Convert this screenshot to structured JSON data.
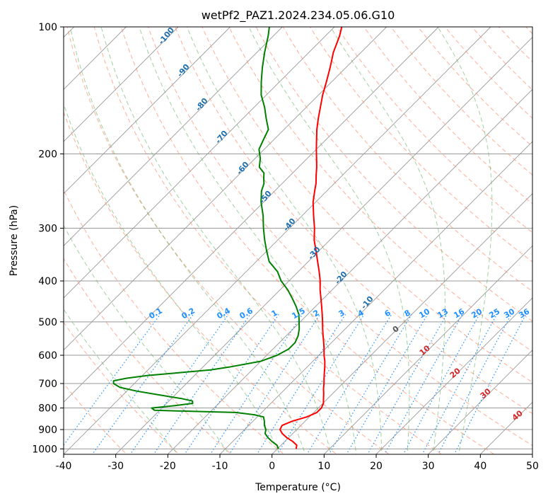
{
  "chart_data": {
    "type": "line",
    "title": "wetPf2_PAZ1.2024.234.05.06.G10",
    "xlabel": "Temperature (°C)",
    "ylabel": "Pressure (hPa)",
    "xlim": [
      -40,
      50
    ],
    "ylim": [
      1030,
      100
    ],
    "y_scale": "log",
    "x_ticks": [
      -40,
      -30,
      -20,
      -10,
      0,
      10,
      20,
      30,
      40,
      50
    ],
    "y_ticks": [
      100,
      200,
      300,
      400,
      500,
      600,
      700,
      800,
      900,
      1000
    ],
    "skew_degrees": 45,
    "grid": true,
    "series": [
      {
        "color": "#ff0000",
        "p": [
          1000,
          980,
          960,
          940,
          920,
          900,
          880,
          860,
          840,
          820,
          800,
          780,
          760,
          740,
          720,
          700,
          680,
          660,
          640,
          620,
          600,
          580,
          560,
          540,
          520,
          500,
          480,
          460,
          440,
          420,
          400,
          380,
          360,
          340,
          320,
          300,
          280,
          260,
          245,
          235,
          225,
          215,
          205,
          195,
          185,
          175,
          165,
          155,
          145,
          135,
          125,
          115,
          105,
          100
        ],
        "t": [
          3.6,
          3.0,
          1.5,
          -0.4,
          -2.0,
          -3.2,
          -3.6,
          -2.5,
          -0.5,
          0.6,
          0.6,
          0.1,
          -0.8,
          -1.7,
          -2.7,
          -3.6,
          -4.6,
          -5.6,
          -6.6,
          -7.7,
          -9.0,
          -10.2,
          -11.5,
          -12.9,
          -14.3,
          -15.7,
          -17.2,
          -18.8,
          -20.5,
          -22.3,
          -24.0,
          -26.0,
          -28.2,
          -30.5,
          -33.0,
          -35.2,
          -37.8,
          -40.5,
          -42.3,
          -43.5,
          -45.0,
          -46.5,
          -48.2,
          -50.0,
          -51.8,
          -53.7,
          -55.5,
          -57.3,
          -59.2,
          -61.0,
          -63.0,
          -65.3,
          -67.3,
          -68.6
        ]
      },
      {
        "color": "#008000",
        "p": [
          1000,
          980,
          960,
          940,
          920,
          900,
          880,
          860,
          840,
          830,
          820,
          815,
          810,
          805,
          800,
          790,
          780,
          770,
          760,
          745,
          730,
          715,
          700,
          690,
          680,
          670,
          660,
          650,
          640,
          620,
          600,
          580,
          560,
          540,
          520,
          500,
          480,
          460,
          440,
          420,
          400,
          380,
          360,
          340,
          320,
          300,
          280,
          260,
          245,
          235,
          228,
          222,
          215,
          205,
          195,
          185,
          175,
          165,
          155,
          145,
          135,
          125,
          115,
          105,
          100
        ],
        "t": [
          0.2,
          -0.8,
          -2.5,
          -4.0,
          -5.3,
          -5.9,
          -7.0,
          -7.8,
          -8.8,
          -11.0,
          -15.0,
          -23.0,
          -31.0,
          -31.5,
          -32.0,
          -28.0,
          -25.0,
          -25.5,
          -28.0,
          -33.0,
          -38.0,
          -42.0,
          -44.0,
          -44.5,
          -42.5,
          -39.0,
          -33.5,
          -28.0,
          -25.0,
          -20.0,
          -18.0,
          -17.0,
          -17.0,
          -17.7,
          -18.8,
          -20.2,
          -21.7,
          -23.7,
          -26.0,
          -28.5,
          -31.5,
          -34.0,
          -37.5,
          -40.0,
          -42.5,
          -45.0,
          -47.5,
          -50.5,
          -52.5,
          -53.5,
          -54.6,
          -55.5,
          -57.5,
          -59.0,
          -61.0,
          -62.0,
          -63.0,
          -65.5,
          -68.0,
          -71.0,
          -73.5,
          -76.0,
          -78.5,
          -81.0,
          -82.5
        ]
      }
    ],
    "dry_adiabat_labels": [
      "-100",
      "-90",
      "-80",
      "-70",
      "-60",
      "-50",
      "-40",
      "-30",
      "-20",
      "-10"
    ],
    "mixing_ratio_labels": [
      "0.1",
      "0.2",
      "0.4",
      "0.6",
      "1",
      "1.5",
      "2",
      "3",
      "4",
      "6",
      "8",
      "10",
      "13",
      "16",
      "20",
      "25",
      "30",
      "36"
    ],
    "moist_adiabat_labels": [
      "0",
      "10",
      "20",
      "30",
      "40"
    ]
  },
  "styles": {
    "temperature_color": "#ff0000",
    "dewpoint_color": "#008000",
    "dry_adiabat_color": "#ff8c69",
    "moist_adiabat_color": "#55aa55",
    "mixing_ratio_color": "#1e90ff",
    "dry_label_color": "#1f6fae",
    "moist_label_color": "#d62728",
    "isotherm_color": "#999999"
  }
}
